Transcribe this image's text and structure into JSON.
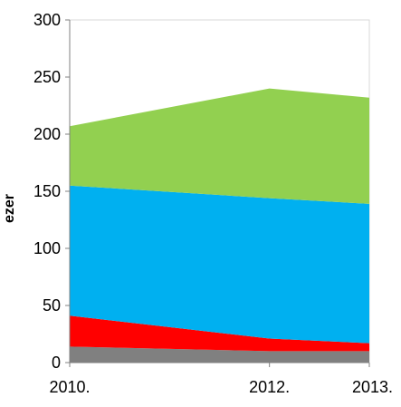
{
  "chart_data": {
    "type": "area",
    "stacked": true,
    "x": [
      "2010.",
      "2012.",
      "2013."
    ],
    "series": [
      {
        "color": "#808080",
        "values": [
          14,
          10,
          10
        ]
      },
      {
        "color": "#ff0000",
        "values": [
          27,
          11,
          7
        ]
      },
      {
        "color": "#00b0f0",
        "values": [
          114,
          123,
          122
        ]
      },
      {
        "color": "#92d050",
        "values": [
          52,
          96,
          93
        ]
      }
    ],
    "ylabel": "ezer",
    "ylim": [
      0,
      300
    ],
    "yticks": [
      "0",
      "50",
      "100",
      "150",
      "200",
      "250",
      "300"
    ],
    "grid": false
  }
}
